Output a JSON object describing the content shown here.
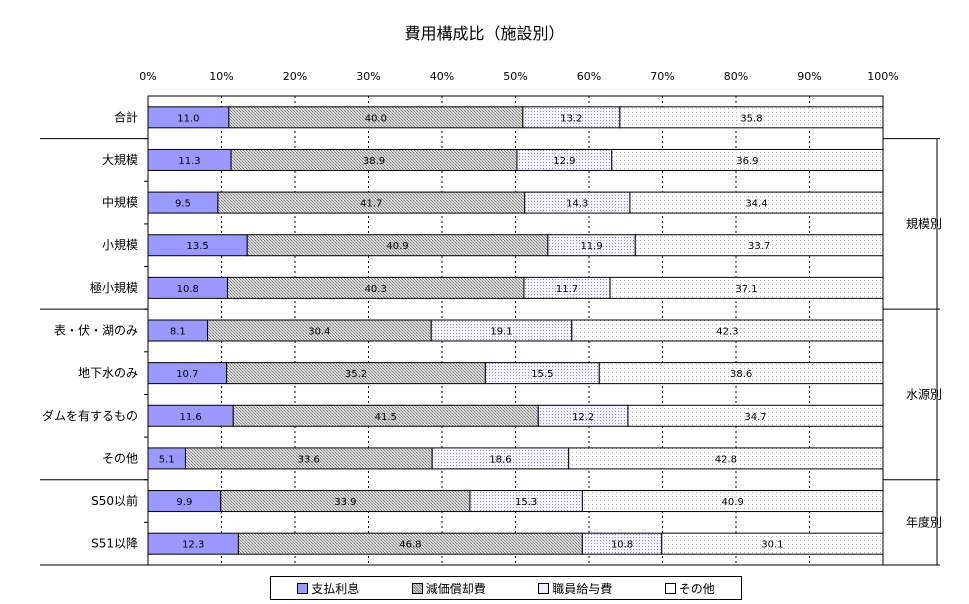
{
  "chart_data": {
    "type": "bar",
    "orientation": "horizontal",
    "stacked": "percent",
    "title": "費用構成比（施設別）",
    "xlim": [
      0,
      100
    ],
    "xticks": [
      "0%",
      "10%",
      "20%",
      "30%",
      "40%",
      "50%",
      "60%",
      "70%",
      "80%",
      "90%",
      "100%"
    ],
    "grid": "vertical dashed",
    "legend_position": "bottom",
    "categories": [
      "合計",
      "大規模",
      "中規模",
      "小規模",
      "極小規模",
      "表・伏・湖のみ",
      "地下水のみ",
      "ダムを有するもの",
      "その他",
      "S50以前",
      "S51以降"
    ],
    "groups": [
      {
        "label": "規模別",
        "categories": [
          "大規模",
          "中規模",
          "小規模",
          "極小規模"
        ]
      },
      {
        "label": "水源別",
        "categories": [
          "表・伏・湖のみ",
          "地下水のみ",
          "ダムを有するもの",
          "その他"
        ]
      },
      {
        "label": "年度別",
        "categories": [
          "S50以前",
          "S51以降"
        ]
      }
    ],
    "series": [
      {
        "name": "支払利息",
        "color": "#9999ff",
        "pattern": "solid",
        "values": [
          11.0,
          11.3,
          9.5,
          13.5,
          10.8,
          8.1,
          10.7,
          11.6,
          5.1,
          9.9,
          12.3
        ],
        "labels": [
          "11.0",
          "11.3",
          "9.5",
          "13.5",
          "10.8",
          "8.1",
          "10.7",
          "11.6",
          "5.1",
          "9.9",
          "12.3"
        ]
      },
      {
        "name": "減価償却費",
        "color": "#c0c0c0",
        "pattern": "checker",
        "values": [
          40.0,
          38.9,
          41.7,
          40.9,
          40.3,
          30.4,
          35.2,
          41.5,
          33.6,
          33.9,
          46.8
        ],
        "labels": [
          "40.0",
          "38.9",
          "41.7",
          "40.9",
          "40.3",
          "30.4",
          "35.2",
          "41.5",
          "33.6",
          "33.9",
          "46.8"
        ]
      },
      {
        "name": "職員給与費",
        "color": "#e8e8ff",
        "pattern": "dots",
        "values": [
          13.2,
          12.9,
          14.3,
          11.9,
          11.7,
          19.1,
          15.5,
          12.2,
          18.6,
          15.3,
          10.8
        ],
        "labels": [
          "13.2",
          "12.9",
          "14.3",
          "11.9",
          "11.7",
          "19.1",
          "15.5",
          "12.2",
          "18.6",
          "15.3",
          "10.8"
        ]
      },
      {
        "name": "その他",
        "color": "#ffffff",
        "pattern": "sparse-dots",
        "values": [
          35.8,
          36.9,
          34.4,
          33.7,
          37.1,
          42.3,
          38.6,
          34.7,
          42.8,
          40.9,
          30.1
        ],
        "labels": [
          "35.8",
          "36.9",
          "34.4",
          "33.7",
          "37.1",
          "42.3",
          "38.6",
          "34.7",
          "42.8",
          "40.9",
          "30.1"
        ]
      }
    ]
  },
  "legend": {
    "items": [
      "支払利息",
      "減価償却費",
      "職員給与費",
      "その他"
    ]
  }
}
